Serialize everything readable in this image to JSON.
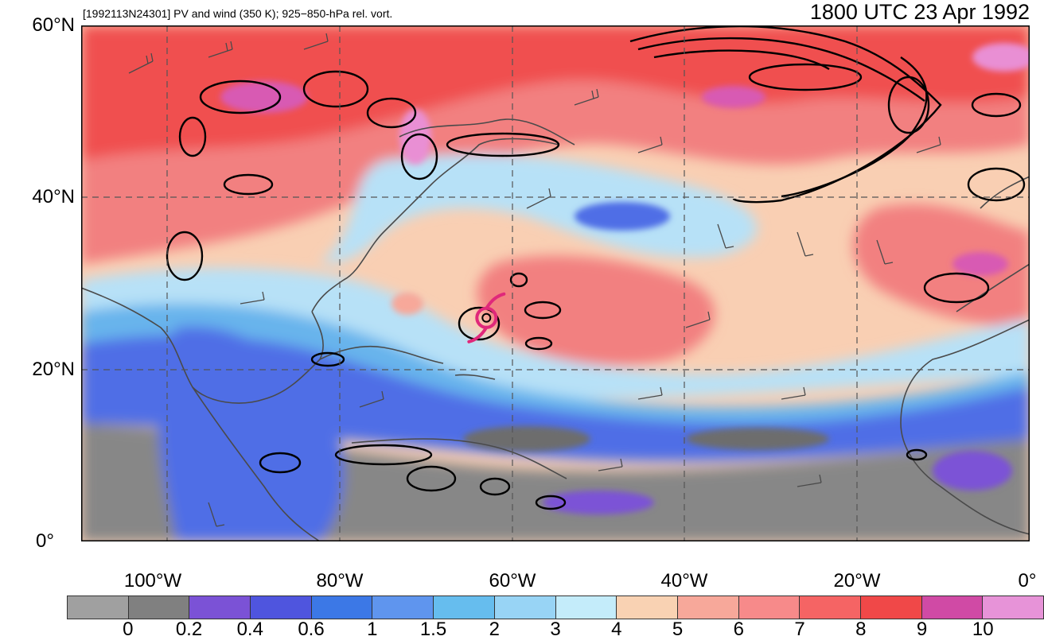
{
  "title": {
    "left": "[1992113N24301] PV and wind (350 K); 925−850-hPa rel. vort.",
    "right": "1800 UTC 23 Apr 1992"
  },
  "axes": {
    "lat_labels": [
      "60°N",
      "40°N",
      "20°N",
      "0°"
    ],
    "lon_labels": [
      "100°W",
      "80°W",
      "60°W",
      "40°W",
      "20°W",
      "0°"
    ],
    "lat_range": [
      0,
      60
    ],
    "lon_range": [
      -110,
      0
    ],
    "gridlines": "dashed"
  },
  "colorbar": {
    "labels": [
      "0",
      "0.2",
      "0.4",
      "0.6",
      "1",
      "1.5",
      "2",
      "3",
      "4",
      "5",
      "6",
      "7",
      "8",
      "9",
      "10"
    ],
    "colors": [
      "#a0a0a0",
      "#808080",
      "#7b52d6",
      "#4f55de",
      "#3c78e6",
      "#5f95ee",
      "#66bdee",
      "#98d4f5",
      "#c4ecfa",
      "#f9d2b3",
      "#f7a89a",
      "#f78a8a",
      "#f56464",
      "#f04848",
      "#d04aa5",
      "#e793d8"
    ]
  },
  "map_colors": {
    "tropics_low": "#878787",
    "tropics_dark": "#6d6d6d",
    "band_blue": "#4f6ee6",
    "band_mid": "#68b4ec",
    "band_light": "#b7e1f7",
    "mid_peach": "#f9cfb3",
    "north_red": "#f28080",
    "north_red_dark": "#f05050",
    "magenta": "#d85ab3",
    "pink": "#e98fd4",
    "vort_contour": "#000000",
    "storm_symbol": "#e0287a",
    "coast": "#4a4a4a"
  },
  "storm": {
    "id": "1992113N24301",
    "symbol": "tropical-cyclone-icon",
    "lat": 26,
    "lon": -63
  }
}
